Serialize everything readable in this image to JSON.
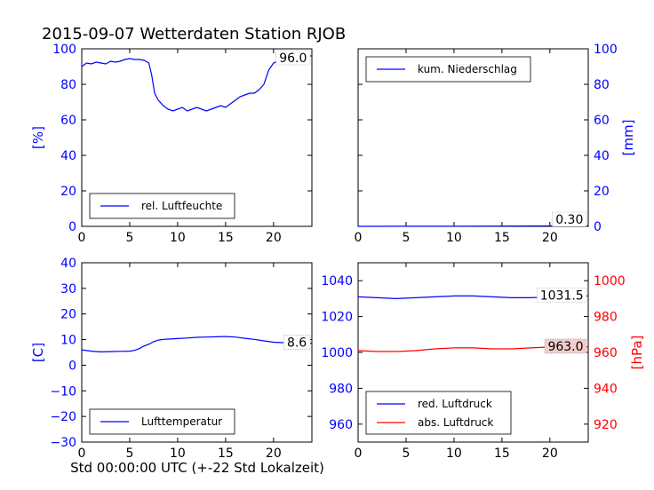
{
  "title": "2015-09-07 Wetterdaten Station RJOB",
  "xlabel": "Std 00:00:00 UTC (+-22 Std Lokalzeit)",
  "colors": {
    "blue": "#0000ff",
    "red": "#ff0000",
    "black": "#000000"
  },
  "chart_data": [
    {
      "type": "line",
      "id": "humidity",
      "xlim": [
        0,
        24
      ],
      "ylim": [
        0,
        100
      ],
      "xticks": [
        0,
        5,
        10,
        15,
        20
      ],
      "yticks": [
        0,
        20,
        40,
        60,
        80,
        100
      ],
      "ylabel": "[%]",
      "legend": "bottom-left",
      "series": [
        {
          "name": "rel. Luftfeuchte",
          "color": "#0000ff",
          "x": [
            0,
            0.5,
            1,
            1.5,
            2,
            2.5,
            3,
            3.5,
            4,
            4.5,
            5,
            5.5,
            6,
            6.5,
            7,
            7.3,
            7.6,
            8,
            8.5,
            9,
            9.5,
            10,
            10.5,
            11,
            11.5,
            12,
            12.5,
            13,
            13.5,
            14,
            14.5,
            15,
            15.5,
            16,
            16.5,
            17,
            17.5,
            18,
            18.5,
            19,
            19.5,
            20,
            20.5,
            21,
            21.5,
            22,
            22.5,
            23,
            23.5,
            24
          ],
          "y": [
            90,
            92,
            91.5,
            92.5,
            92,
            91.5,
            93,
            92.5,
            93,
            94,
            94.5,
            94,
            94,
            93.5,
            92,
            85,
            75,
            71,
            68,
            66,
            65,
            66,
            67,
            65,
            66,
            67,
            66,
            65,
            66,
            67,
            68,
            67,
            69,
            71,
            73,
            74,
            75,
            75,
            77,
            80,
            88,
            92,
            93,
            94,
            94,
            95,
            96,
            96,
            96,
            96
          ]
        }
      ],
      "annotation": "96.0"
    },
    {
      "type": "line",
      "id": "precipitation",
      "xlim": [
        0,
        24
      ],
      "ylim": [
        0,
        100
      ],
      "xticks": [
        0,
        5,
        10,
        15,
        20
      ],
      "yticks": [
        0,
        20,
        40,
        60,
        80,
        100
      ],
      "ylabel": "[mm]",
      "legend": "top-left",
      "series": [
        {
          "name": "kum. Niederschlag",
          "color": "#0000ff",
          "x": [
            0,
            5,
            10,
            15,
            20,
            24
          ],
          "y": [
            0,
            0.05,
            0.1,
            0.15,
            0.25,
            0.3
          ]
        }
      ],
      "annotation": "0.30"
    },
    {
      "type": "line",
      "id": "temperature",
      "xlim": [
        0,
        24
      ],
      "ylim": [
        -30,
        40
      ],
      "xticks": [
        0,
        5,
        10,
        15,
        20
      ],
      "yticks": [
        -30,
        -20,
        -10,
        0,
        10,
        20,
        30,
        40
      ],
      "ylabel": "[C]",
      "legend": "bottom-left",
      "series": [
        {
          "name": "Lufttemperatur",
          "color": "#0000ff",
          "x": [
            0,
            1,
            2,
            3,
            4,
            5,
            5.5,
            6,
            6.5,
            7,
            7.5,
            8,
            8.5,
            9,
            10,
            11,
            12,
            13,
            14,
            15,
            16,
            17,
            18,
            19,
            20,
            21,
            22,
            23,
            24
          ],
          "y": [
            6,
            5.5,
            5.2,
            5.3,
            5.4,
            5.5,
            5.8,
            6.5,
            7.5,
            8.2,
            9.2,
            9.8,
            10.1,
            10.2,
            10.4,
            10.6,
            10.9,
            11,
            11.1,
            11.2,
            11,
            10.5,
            10.1,
            9.5,
            9,
            8.8,
            8.7,
            8.6,
            8.6
          ]
        }
      ],
      "annotation": "8.6"
    },
    {
      "type": "line",
      "id": "pressure",
      "xlim": [
        0,
        24
      ],
      "ylim_left": [
        950,
        1050
      ],
      "ylim_right": [
        910,
        1010
      ],
      "xticks": [
        0,
        5,
        10,
        15,
        20
      ],
      "yticks_left": [
        960,
        980,
        1000,
        1020,
        1040
      ],
      "yticks_right": [
        920,
        940,
        960,
        980,
        1000
      ],
      "ylabel_right": "[hPa]",
      "legend": "bottom-left",
      "series": [
        {
          "name": "red. Luftdruck",
          "color": "#0000ff",
          "axis": "left",
          "x": [
            0,
            2,
            4,
            6,
            8,
            10,
            12,
            14,
            16,
            18,
            20,
            22,
            24
          ],
          "y": [
            1031,
            1030.5,
            1030,
            1030.5,
            1031,
            1031.5,
            1031.5,
            1031,
            1030.5,
            1030.5,
            1031,
            1031.5,
            1031.5
          ]
        },
        {
          "name": "abs. Luftdruck",
          "color": "#ff0000",
          "axis": "right",
          "x": [
            0,
            2,
            4,
            6,
            8,
            10,
            12,
            14,
            16,
            18,
            20,
            22,
            24
          ],
          "y": [
            961,
            960.5,
            960.5,
            961,
            962,
            962.5,
            962.5,
            962,
            962,
            962.5,
            963,
            963,
            963
          ]
        }
      ],
      "annotations": [
        "1031.5",
        "963.0"
      ]
    }
  ]
}
